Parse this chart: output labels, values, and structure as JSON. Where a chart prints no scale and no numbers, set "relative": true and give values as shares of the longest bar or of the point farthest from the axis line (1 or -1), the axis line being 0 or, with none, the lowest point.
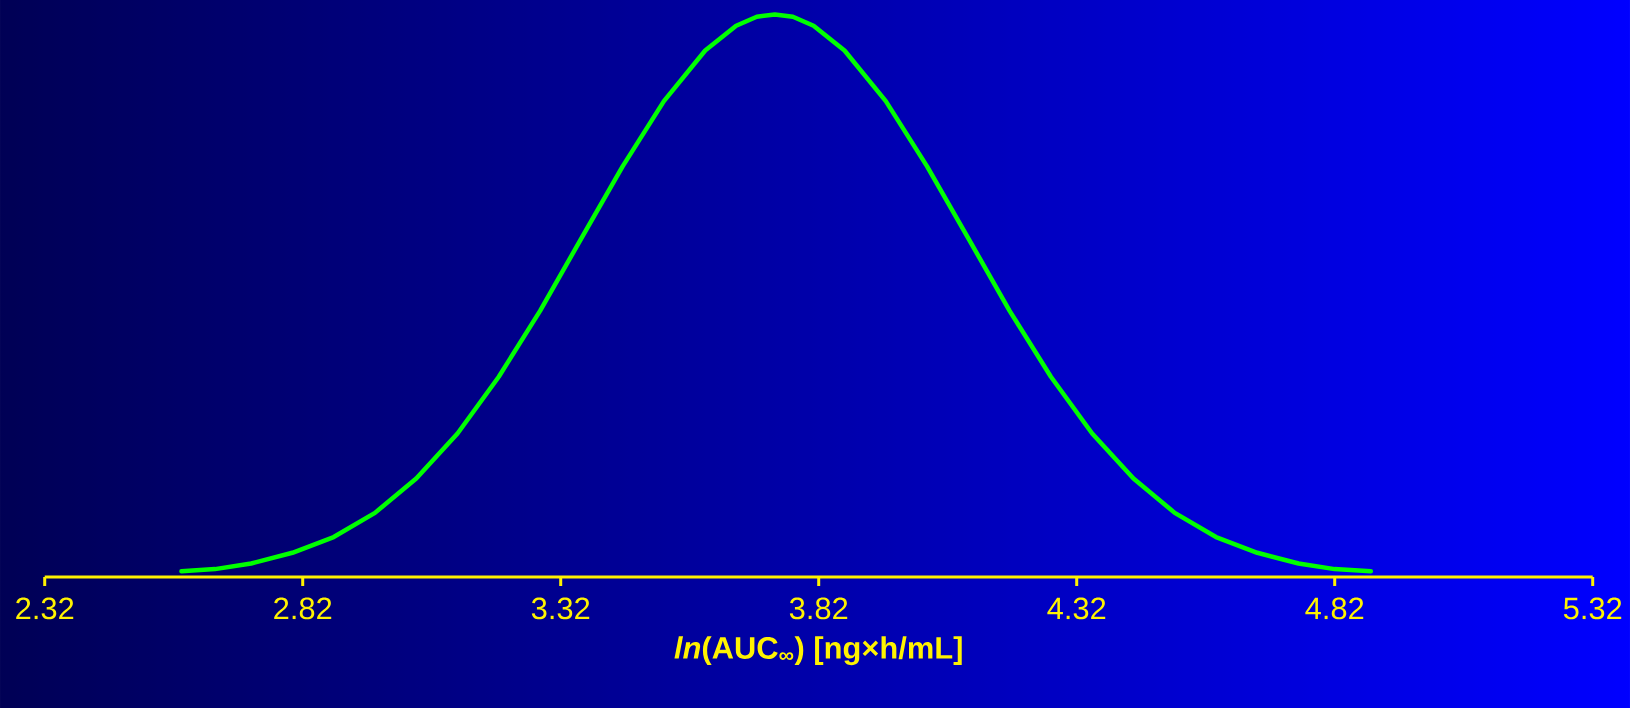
{
  "chart_data": {
    "type": "line",
    "relative": true,
    "xlabel": "*ln*(AUC$_{∞}$) [ng×h/mL]",
    "xlim": [
      2.32,
      5.32
    ],
    "xticks": [
      2.32,
      2.82,
      3.32,
      3.82,
      4.32,
      4.82,
      5.32
    ],
    "tick_labels": "x",
    "series": [
      {
        "color": "#00ff00",
        "x": [
          2.585,
          2.65,
          2.72,
          2.8,
          2.88,
          2.96,
          3.04,
          3.12,
          3.2,
          3.28,
          3.36,
          3.44,
          3.52,
          3.6,
          3.66,
          3.7,
          3.735,
          3.77,
          3.81,
          3.87,
          3.95,
          4.03,
          4.11,
          4.19,
          4.27,
          4.35,
          4.43,
          4.51,
          4.59,
          4.67,
          4.75,
          4.82,
          4.89
        ],
        "values": [
          0.01,
          0.014,
          0.024,
          0.043,
          0.071,
          0.114,
          0.175,
          0.255,
          0.356,
          0.473,
          0.602,
          0.73,
          0.846,
          0.936,
          0.98,
          0.996,
          1,
          0.996,
          0.98,
          0.936,
          0.846,
          0.73,
          0.602,
          0.473,
          0.356,
          0.255,
          0.175,
          0.114,
          0.071,
          0.043,
          0.024,
          0.014,
          0.01
        ]
      }
    ]
  }
}
